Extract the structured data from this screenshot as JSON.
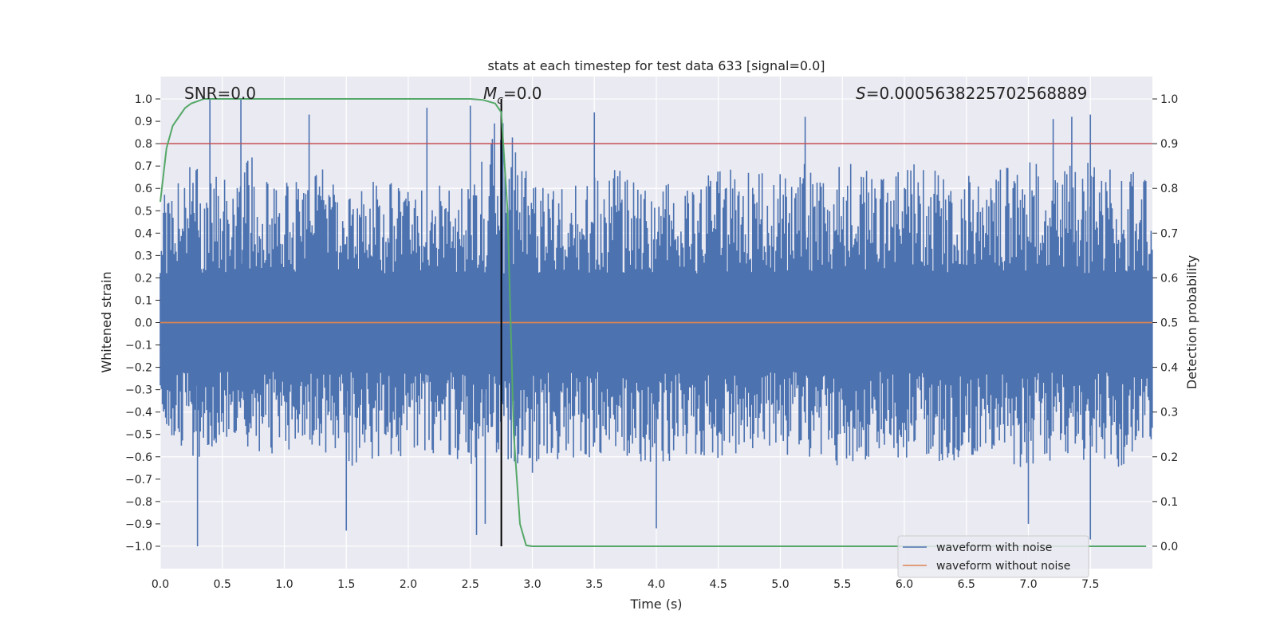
{
  "chart_data": {
    "type": "line",
    "title": "stats at each timestep for test data 633 [signal=0.0]",
    "xlabel": "Time (s)",
    "ylabel": "Whitened strain",
    "y2label": "Detection probability",
    "xlim": [
      0.0,
      8.0
    ],
    "ylim": [
      -1.1,
      1.1
    ],
    "y2lim": [
      -0.05,
      1.05
    ],
    "grid": true,
    "x_ticks": [
      "0.0",
      "0.5",
      "1.0",
      "1.5",
      "2.0",
      "2.5",
      "3.0",
      "3.5",
      "4.0",
      "4.5",
      "5.0",
      "5.5",
      "6.0",
      "6.5",
      "7.0",
      "7.5"
    ],
    "y_ticks": [
      "1.0",
      "0.9",
      "0.8",
      "0.7",
      "0.6",
      "0.5",
      "0.4",
      "0.3",
      "0.2",
      "0.1",
      "0.0",
      "−0.1",
      "−0.2",
      "−0.3",
      "−0.4",
      "−0.5",
      "−0.6",
      "−0.7",
      "−0.8",
      "−0.9",
      "−1.0"
    ],
    "y2_ticks": [
      "1.0",
      "0.9",
      "0.8",
      "0.7",
      "0.6",
      "0.5",
      "0.4",
      "0.3",
      "0.2",
      "0.1",
      "0.0"
    ],
    "annotations": {
      "snr": "SNR=0.0",
      "mc_symbol": "M",
      "mc_sub": "c",
      "mc_value": "=0.0",
      "s_symbol": "S",
      "s_value": "=0.0005638225702568889"
    },
    "threshold": {
      "axis": "right",
      "value": 0.9,
      "color": "#c44e52"
    },
    "vertical_marker": {
      "x": 2.75,
      "y_from": -1.0,
      "y_to": 1.0,
      "color": "#000000"
    },
    "series": [
      {
        "name": "waveform with noise",
        "axis": "left",
        "color": "#4c72b0",
        "description": "dense noise, envelope sampled at 0.25 s",
        "x": [
          0.0,
          0.25,
          0.5,
          0.75,
          1.0,
          1.25,
          1.5,
          1.75,
          2.0,
          2.25,
          2.5,
          2.75,
          3.0,
          3.25,
          3.5,
          3.75,
          4.0,
          4.25,
          4.5,
          4.75,
          5.0,
          5.25,
          5.5,
          5.75,
          6.0,
          6.25,
          6.5,
          6.75,
          7.0,
          7.25,
          7.5,
          7.75,
          8.0
        ],
        "upper_envelope": [
          0.55,
          0.72,
          0.68,
          0.75,
          0.62,
          0.72,
          0.58,
          0.65,
          0.6,
          0.62,
          0.65,
          0.98,
          0.62,
          0.6,
          0.68,
          0.7,
          0.65,
          0.62,
          0.68,
          0.7,
          0.68,
          0.72,
          0.72,
          0.68,
          0.72,
          0.7,
          0.68,
          0.7,
          0.72,
          0.7,
          0.72,
          0.7,
          0.65
        ],
        "lower_envelope": [
          -0.45,
          -0.62,
          -0.55,
          -0.6,
          -0.62,
          -0.55,
          -0.65,
          -0.6,
          -0.62,
          -0.58,
          -0.65,
          -0.6,
          -0.7,
          -0.65,
          -0.6,
          -0.62,
          -0.65,
          -0.6,
          -0.62,
          -0.58,
          -0.62,
          -0.6,
          -0.65,
          -0.6,
          -0.62,
          -0.65,
          -0.6,
          -0.62,
          -0.68,
          -0.6,
          -0.62,
          -0.65,
          -0.55
        ],
        "peaks": [
          {
            "x": 0.4,
            "y": 1.0
          },
          {
            "x": 0.65,
            "y": 1.0
          },
          {
            "x": 1.2,
            "y": 0.93
          },
          {
            "x": 2.15,
            "y": 0.96
          },
          {
            "x": 2.5,
            "y": 0.97
          },
          {
            "x": 3.5,
            "y": 0.94
          },
          {
            "x": 5.2,
            "y": 0.92
          },
          {
            "x": 7.2,
            "y": 0.91
          },
          {
            "x": 7.35,
            "y": 0.92
          },
          {
            "x": 7.5,
            "y": 0.93
          },
          {
            "x": 0.3,
            "y": -1.0
          },
          {
            "x": 1.5,
            "y": -0.93
          },
          {
            "x": 2.55,
            "y": -0.95
          },
          {
            "x": 2.62,
            "y": -0.9
          },
          {
            "x": 4.0,
            "y": -0.92
          },
          {
            "x": 7.0,
            "y": -0.9
          },
          {
            "x": 7.5,
            "y": -0.97
          }
        ]
      },
      {
        "name": "waveform without noise",
        "axis": "left",
        "color": "#dd8452",
        "x": [
          0.0,
          8.0
        ],
        "y": [
          0.0,
          0.0
        ]
      },
      {
        "name": "detection probability",
        "axis": "right",
        "color": "#55a868",
        "x": [
          0.0,
          0.05,
          0.1,
          0.15,
          0.2,
          0.25,
          0.3,
          0.35,
          0.4,
          0.5,
          1.0,
          2.0,
          2.5,
          2.6,
          2.7,
          2.75,
          2.8,
          2.85,
          2.9,
          2.95,
          3.0,
          4.0,
          5.0,
          6.0,
          7.0,
          7.5,
          7.95
        ],
        "y": [
          0.77,
          0.89,
          0.94,
          0.96,
          0.98,
          0.99,
          0.995,
          1.0,
          1.0,
          1.0,
          1.0,
          1.0,
          1.0,
          0.998,
          0.99,
          0.97,
          0.75,
          0.25,
          0.05,
          0.002,
          0.0,
          0.0,
          0.0,
          0.0,
          0.0,
          0.0,
          0.0
        ]
      }
    ],
    "legend": {
      "placement": "lower-right",
      "entries": [
        {
          "label": "waveform with noise",
          "color": "#4c72b0"
        },
        {
          "label": "waveform without noise",
          "color": "#dd8452"
        }
      ]
    }
  }
}
